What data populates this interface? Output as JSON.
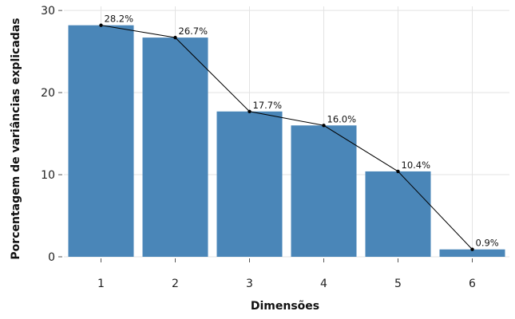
{
  "chart_data": {
    "type": "bar",
    "title": "",
    "xlabel": "Dimensões",
    "ylabel": "Porcentagem de variâncias explicadas",
    "categories": [
      "1",
      "2",
      "3",
      "4",
      "5",
      "6"
    ],
    "series": [
      {
        "values": [
          28.2,
          26.7,
          17.7,
          16.0,
          10.4,
          0.9
        ]
      }
    ],
    "data_labels": [
      "28.2%",
      "26.7%",
      "17.7%",
      "16.0%",
      "10.4%",
      "0.9%"
    ],
    "overlay_line": true,
    "ylim": [
      0,
      30.5
    ],
    "yticks": [
      0,
      10,
      20,
      30
    ],
    "grid": true,
    "legend": "none",
    "colors": {
      "bar": "#4a86b8",
      "line": "#000000",
      "grid": "#e3e3e3"
    }
  }
}
